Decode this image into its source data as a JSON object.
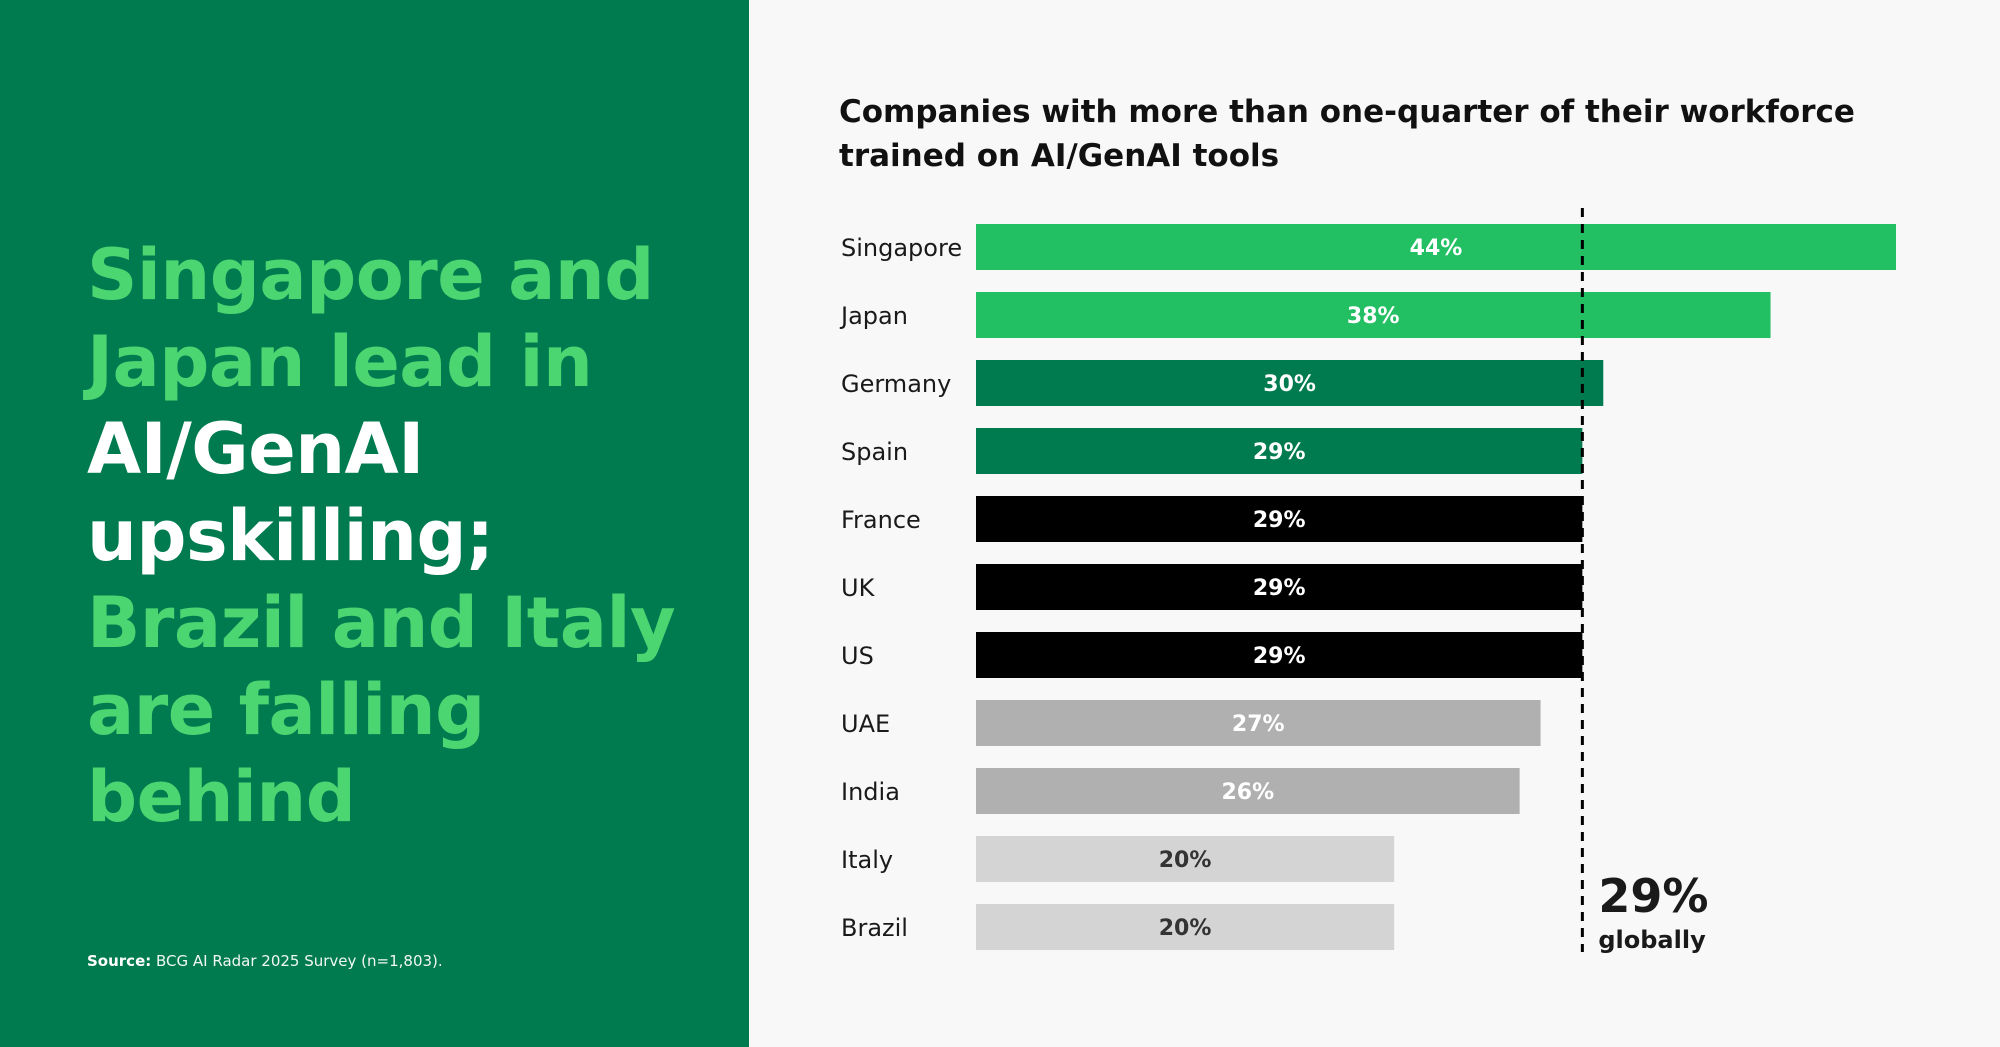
{
  "headline": {
    "part1": "Singapore and Japan lead in ",
    "part2": "AI/GenAI upskilling; ",
    "part3": "Brazil and Italy are falling behind"
  },
  "source": {
    "label": "Source:",
    "text": " BCG AI Radar 2025 Survey (n=1,803)."
  },
  "colors": {
    "left_panel": "#007a4f",
    "accent_green": "#4bd672",
    "bright_green": "#22c063",
    "dark_green": "#007a4f",
    "black": "#000000",
    "mid_gray": "#b0b0b0",
    "light_gray": "#d4d4d4"
  },
  "chart_data": {
    "type": "bar",
    "orientation": "horizontal",
    "title": "Companies with more than one-quarter of their workforce trained on AI/GenAI tools",
    "categories": [
      "Singapore",
      "Japan",
      "Germany",
      "Spain",
      "France",
      "UK",
      "US",
      "UAE",
      "India",
      "Italy",
      "Brazil"
    ],
    "values": [
      44,
      38,
      30,
      29,
      29,
      29,
      29,
      27,
      26,
      20,
      20
    ],
    "value_labels": [
      "44%",
      "38%",
      "30%",
      "29%",
      "29%",
      "29%",
      "29%",
      "27%",
      "26%",
      "20%",
      "20%"
    ],
    "bar_colors": [
      "#22c063",
      "#22c063",
      "#007a4f",
      "#007a4f",
      "#000000",
      "#000000",
      "#000000",
      "#b0b0b0",
      "#b0b0b0",
      "#d4d4d4",
      "#d4d4d4"
    ],
    "label_colors": [
      "#ffffff",
      "#ffffff",
      "#ffffff",
      "#ffffff",
      "#ffffff",
      "#ffffff",
      "#ffffff",
      "#ffffff",
      "#ffffff",
      "#333333",
      "#333333"
    ],
    "xlim": [
      0,
      44
    ],
    "grid": false,
    "reference_line": {
      "value": 29,
      "style": "dashed",
      "label_value": "29%",
      "label_caption": "globally"
    }
  }
}
